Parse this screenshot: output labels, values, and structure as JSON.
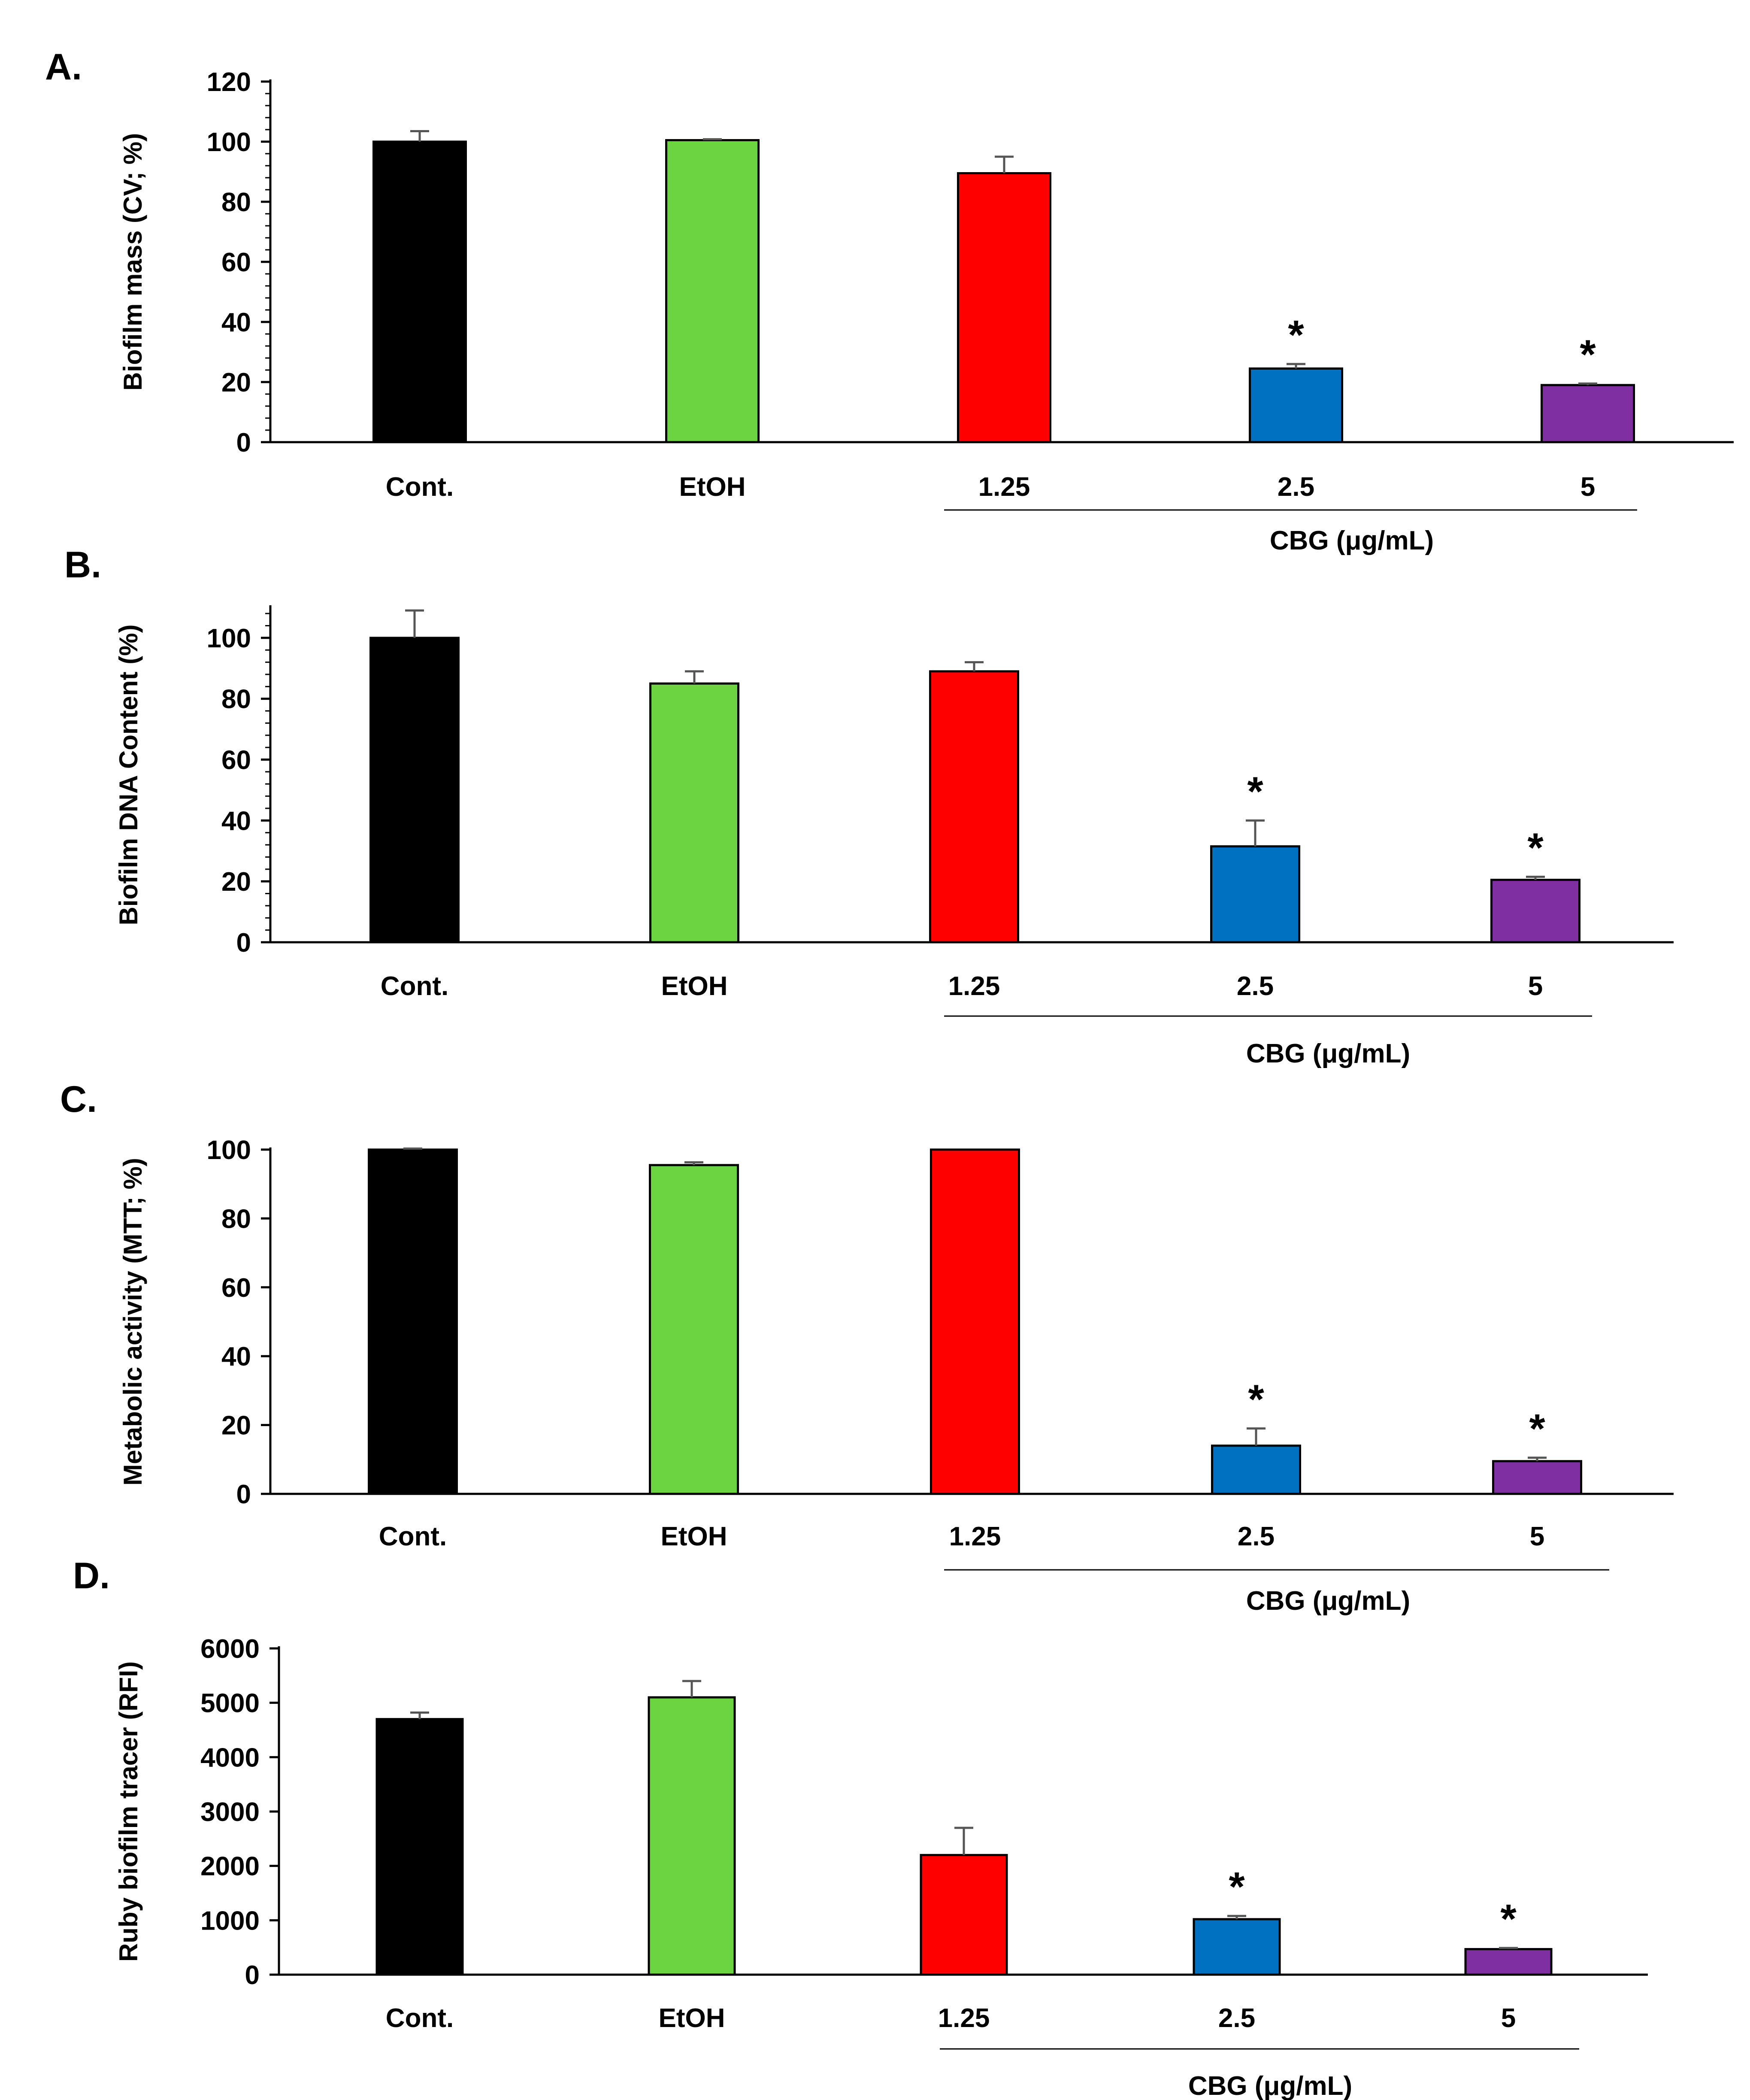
{
  "figure": {
    "bar_colors": [
      "#000000",
      "#6cd441",
      "#ff0000",
      "#0070c0",
      "#7f2fa2"
    ],
    "significance_symbol": "*"
  },
  "chart_data": [
    {
      "type": "bar",
      "panel": "A.",
      "title": "",
      "xlabel": "",
      "ylabel": "Biofilm mass (CV; %)",
      "categories": [
        "Cont.",
        "EtOH",
        "1.25",
        "2.5",
        "5"
      ],
      "values": [
        100,
        100.5,
        89.5,
        24.5,
        19
      ],
      "errors": [
        3.5,
        0.3,
        5.5,
        1.5,
        0.5
      ],
      "significant": [
        false,
        false,
        false,
        true,
        true
      ],
      "ylim": [
        0,
        120
      ],
      "yticks": [
        "0",
        "20",
        "40",
        "60",
        "80",
        "100",
        "120"
      ],
      "minor_ticks": true,
      "group_label": "CBG (μg/mL)",
      "grid": false
    },
    {
      "type": "bar",
      "panel": "B.",
      "title": "",
      "xlabel": "",
      "ylabel": "Biofilm DNA Content (%)",
      "categories": [
        "Cont.",
        "EtOH",
        "1.25",
        "2.5",
        "5"
      ],
      "values": [
        100,
        85,
        89,
        31.5,
        20.5
      ],
      "errors": [
        9,
        4,
        3,
        8.5,
        1
      ],
      "significant": [
        false,
        false,
        false,
        true,
        true
      ],
      "ylim": [
        0,
        110
      ],
      "yticks": [
        "0",
        "20",
        "40",
        "60",
        "80",
        "100"
      ],
      "minor_ticks": true,
      "group_label": "CBG (μg/mL)",
      "grid": false
    },
    {
      "type": "bar",
      "panel": "C.",
      "title": "",
      "xlabel": "",
      "ylabel": "Metabolic activity (MTT; %)",
      "categories": [
        "Cont.",
        "EtOH",
        "1.25",
        "2.5",
        "5"
      ],
      "values": [
        100,
        95.5,
        100,
        14,
        9.5
      ],
      "errors": [
        0.3,
        0.8,
        0,
        5,
        1
      ],
      "significant": [
        false,
        false,
        false,
        true,
        true
      ],
      "ylim": [
        0,
        100
      ],
      "yticks": [
        "0",
        "20",
        "40",
        "60",
        "80",
        "100"
      ],
      "minor_ticks": false,
      "group_label": "CBG (μg/mL)",
      "grid": false
    },
    {
      "type": "bar",
      "panel": "D.",
      "title": "",
      "xlabel": "",
      "ylabel": "Ruby biofilm tracer (RFI)",
      "categories": [
        "Cont.",
        "EtOH",
        "1.25",
        "2.5",
        "5"
      ],
      "values": [
        4700,
        5100,
        2200,
        1020,
        470
      ],
      "errors": [
        120,
        300,
        500,
        60,
        20
      ],
      "significant": [
        false,
        false,
        false,
        true,
        true
      ],
      "ylim": [
        0,
        6000
      ],
      "yticks": [
        "0",
        "1000",
        "2000",
        "3000",
        "4000",
        "5000",
        "6000"
      ],
      "minor_ticks": false,
      "group_label": "CBG (μg/mL)",
      "grid": false
    }
  ]
}
